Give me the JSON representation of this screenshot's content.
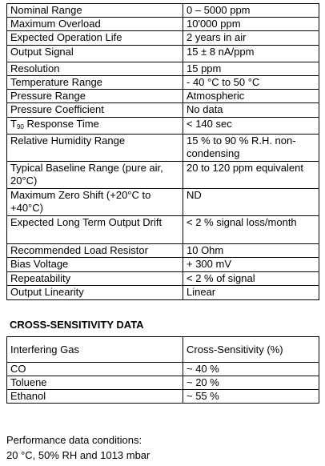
{
  "specs": {
    "rows": [
      {
        "parameter": "Nominal Range",
        "value": "0 – 5000 ppm"
      },
      {
        "parameter": "Maximum Overload",
        "value": "10'000 ppm"
      },
      {
        "parameter": "Expected Operation Life",
        "value": "2 years in air"
      },
      {
        "parameter": "Output Signal",
        "value": "15  ± 8 nA/ppm"
      },
      {
        "parameter": "Resolution",
        "value": "15 ppm"
      },
      {
        "parameter": "Temperature Range",
        "value": "- 40 °C to 50 °C"
      },
      {
        "parameter": "Pressure Range",
        "value": "Atmospheric"
      },
      {
        "parameter": "Pressure Coefficient",
        "value": "No data"
      },
      {
        "parameter": [
          "T",
          "90",
          " Response Time"
        ],
        "value": "< 140 sec"
      },
      {
        "parameter": "Relative Humidity Range",
        "value": "15 % to 90 % R.H. non-condensing"
      },
      {
        "parameter": "Typical Baseline Range (pure air, 20°C)",
        "value": "20 to 120 ppm equivalent"
      },
      {
        "parameter": "Maximum Zero Shift (+20°C to +40°C)",
        "value": "ND"
      },
      {
        "parameter": "Expected Long Term Output Drift",
        "value": "< 2 % signal loss/month"
      },
      {
        "parameter": "Recommended Load Resistor",
        "value": "10 Ohm"
      },
      {
        "parameter": "Bias Voltage",
        "value": "+ 300 mV"
      },
      {
        "parameter": "Repeatability",
        "value": "< 2 % of signal"
      },
      {
        "parameter": "Output Linearity",
        "value": "Linear"
      }
    ]
  },
  "cross_sensitivity": {
    "heading": "CROSS-SENSITIVITY DATA",
    "header": [
      "Interfering Gas",
      "Cross-Sensitivity (%)"
    ],
    "rows": [
      [
        "CO",
        "~ 40 %"
      ],
      [
        "Toluene",
        "~ 20 %"
      ],
      [
        "Ethanol",
        "~ 55 %"
      ]
    ]
  },
  "footer": {
    "line1": "Performance data conditions:",
    "line2": "20 °C, 50% RH and 1013 mbar"
  }
}
